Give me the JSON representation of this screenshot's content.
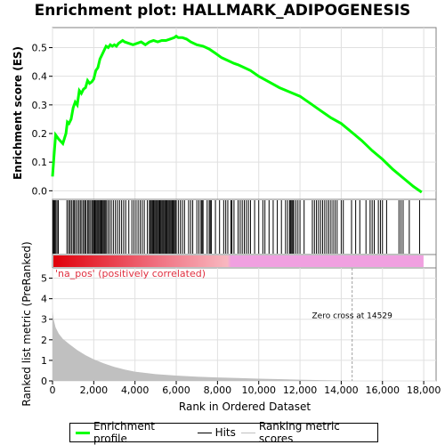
{
  "title": "Enrichment plot: HALLMARK_ADIPOGENESIS",
  "chart_data": [
    {
      "type": "line",
      "panel": "enrichment",
      "ylabel": "Enrichment score (ES)",
      "ylim": [
        -0.03,
        0.57
      ],
      "yticks": [
        "0.0",
        "0.1",
        "0.2",
        "0.3",
        "0.4",
        "0.5"
      ],
      "ytick_values": [
        0.0,
        0.1,
        0.2,
        0.3,
        0.4,
        0.5
      ],
      "grid": true,
      "color": "#00ff00",
      "series": [
        {
          "x": [
            0,
            60,
            150,
            300,
            500,
            650,
            720,
            800,
            900,
            1000,
            1100,
            1200,
            1300,
            1400,
            1500,
            1600,
            1700,
            1800,
            1900,
            2000,
            2100,
            2200,
            2300,
            2400,
            2500,
            2600,
            2700,
            2800,
            2900,
            3000,
            3100,
            3200,
            3300,
            3400,
            3500,
            3700,
            3900,
            4100,
            4300,
            4500,
            4700,
            4900,
            5100,
            5300,
            5500,
            5700,
            5900,
            6000,
            6100,
            6300,
            6500,
            6700,
            7000,
            7300,
            7600,
            7900,
            8200,
            8500,
            8800,
            9000,
            9300,
            9600,
            10000,
            10500,
            11000,
            11500,
            12000,
            12500,
            13000,
            13500,
            14000,
            14500,
            15000,
            15500,
            16000,
            16500,
            17000,
            17500,
            17900
          ],
          "values": [
            0.05,
            0.11,
            0.195,
            0.18,
            0.165,
            0.2,
            0.24,
            0.235,
            0.25,
            0.29,
            0.31,
            0.3,
            0.35,
            0.34,
            0.355,
            0.36,
            0.385,
            0.375,
            0.38,
            0.39,
            0.42,
            0.43,
            0.46,
            0.475,
            0.49,
            0.505,
            0.5,
            0.51,
            0.505,
            0.51,
            0.505,
            0.515,
            0.52,
            0.525,
            0.52,
            0.515,
            0.51,
            0.515,
            0.52,
            0.51,
            0.52,
            0.525,
            0.52,
            0.525,
            0.525,
            0.53,
            0.535,
            0.54,
            0.535,
            0.535,
            0.53,
            0.52,
            0.51,
            0.505,
            0.495,
            0.48,
            0.465,
            0.455,
            0.445,
            0.44,
            0.43,
            0.42,
            0.4,
            0.38,
            0.36,
            0.345,
            0.33,
            0.305,
            0.28,
            0.255,
            0.235,
            0.205,
            0.175,
            0.14,
            0.11,
            0.075,
            0.045,
            0.015,
            -0.005
          ]
        }
      ]
    },
    {
      "type": "scatter",
      "panel": "hits",
      "name": "Hits",
      "x": [
        20,
        60,
        110,
        160,
        220,
        280,
        700,
        780,
        850,
        920,
        1000,
        1050,
        1120,
        1200,
        1280,
        1350,
        1420,
        1500,
        1560,
        1620,
        1700,
        1760,
        1820,
        1900,
        1950,
        2000,
        2050,
        2100,
        2150,
        2200,
        2250,
        2300,
        2350,
        2400,
        2450,
        2500,
        2550,
        2600,
        2680,
        2760,
        2850,
        2950,
        3050,
        3150,
        3250,
        3350,
        3450,
        3550,
        3700,
        3850,
        3950,
        4050,
        4150,
        4250,
        4350,
        4450,
        4600,
        4700,
        4750,
        4800,
        4850,
        4900,
        4950,
        5000,
        5050,
        5100,
        5150,
        5200,
        5250,
        5300,
        5350,
        5400,
        5450,
        5500,
        5550,
        5600,
        5650,
        5700,
        5750,
        5800,
        5850,
        5900,
        5950,
        6000,
        6100,
        6200,
        6300,
        6400,
        6600,
        6700,
        6800,
        7000,
        7100,
        7200,
        7250,
        7300,
        7500,
        7600,
        7650,
        7700,
        7900,
        8100,
        8300,
        8400,
        8500,
        8650,
        8700,
        8800,
        9000,
        9100,
        9200,
        9300,
        9400,
        9500,
        9600,
        9800,
        10000,
        10200,
        10300,
        10500,
        10700,
        10900,
        11100,
        11300,
        11400,
        11500,
        11550,
        11600,
        11650,
        11700,
        11800,
        11900,
        12000,
        12200,
        12600,
        12700,
        12800,
        12900,
        13000,
        13100,
        13200,
        13300,
        13400,
        13500,
        13600,
        13700,
        13800,
        14000,
        14100,
        14500,
        14700,
        14900,
        15200,
        15400,
        15500,
        15600,
        15800,
        15900,
        16000,
        16200,
        16800,
        16900,
        17000,
        17300,
        17800
      ]
    },
    {
      "type": "heatmap",
      "panel": "ranking-bar",
      "color_stops": [
        "#e0000a",
        "#f07080",
        "#f8b8c0",
        "#f0a0e0"
      ],
      "label": "'na_pos' (positively correlated)"
    },
    {
      "type": "area",
      "panel": "ranked-metric",
      "xlabel": "Rank in Ordered Dataset",
      "ylabel": "Ranked list metric (PreRanked)",
      "xlim": [
        0,
        18600
      ],
      "ylim": [
        0,
        5.5
      ],
      "xticks": [
        "0",
        "2,000",
        "4,000",
        "6,000",
        "8,000",
        "10,000",
        "12,000",
        "14,000",
        "16,000",
        "18,000"
      ],
      "xtick_values": [
        0,
        2000,
        4000,
        6000,
        8000,
        10000,
        12000,
        14000,
        16000,
        18000
      ],
      "yticks": [
        "0",
        "1",
        "2",
        "3",
        "4",
        "5"
      ],
      "ytick_values": [
        0,
        1,
        2,
        3,
        4,
        5
      ],
      "color": "#c0c0c0",
      "x": [
        0,
        50,
        150,
        300,
        500,
        800,
        1200,
        1600,
        2000,
        2500,
        3000,
        3500,
        4000,
        5000,
        6000,
        7000,
        8000,
        9000,
        10000,
        11000,
        12000,
        13000,
        14000,
        14529
      ],
      "values": [
        3.4,
        3.0,
        2.6,
        2.3,
        2.05,
        1.8,
        1.5,
        1.25,
        1.05,
        0.85,
        0.68,
        0.55,
        0.45,
        0.33,
        0.26,
        0.21,
        0.17,
        0.14,
        0.11,
        0.085,
        0.06,
        0.04,
        0.02,
        0.0
      ],
      "annotation": "Zero cross at 14529",
      "zero_cross": 14529
    }
  ],
  "legend": {
    "items": [
      {
        "label": "Enrichment profile",
        "color": "#00ff00"
      },
      {
        "label": "Hits",
        "color": "#000000"
      },
      {
        "label": "Ranking metric scores",
        "color": "#c0c0c0"
      }
    ]
  }
}
